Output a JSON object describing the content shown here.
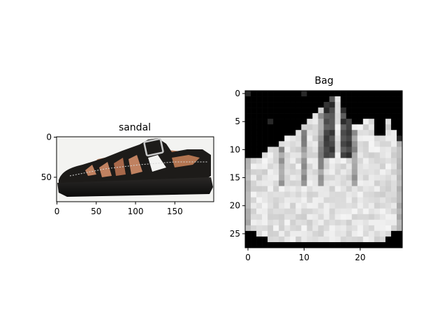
{
  "left": {
    "title": "sandal",
    "image": {
      "width": 200,
      "height": 81
    },
    "xticks": [
      0,
      50,
      100,
      150
    ],
    "yticks": [
      0,
      50
    ]
  },
  "right": {
    "title": "Bag",
    "image": {
      "width": 28,
      "height": 28
    },
    "xticks": [
      0,
      10,
      20
    ],
    "yticks": [
      0,
      5,
      10,
      15,
      20,
      25
    ]
  },
  "colors": {
    "axes": "#000000",
    "sandal_bg": "#f3f3f1",
    "sandal_leather": "#1d1b19",
    "sandal_sole": "#111111",
    "sandal_lining": "#b27450",
    "bag_bg": "#000000"
  }
}
